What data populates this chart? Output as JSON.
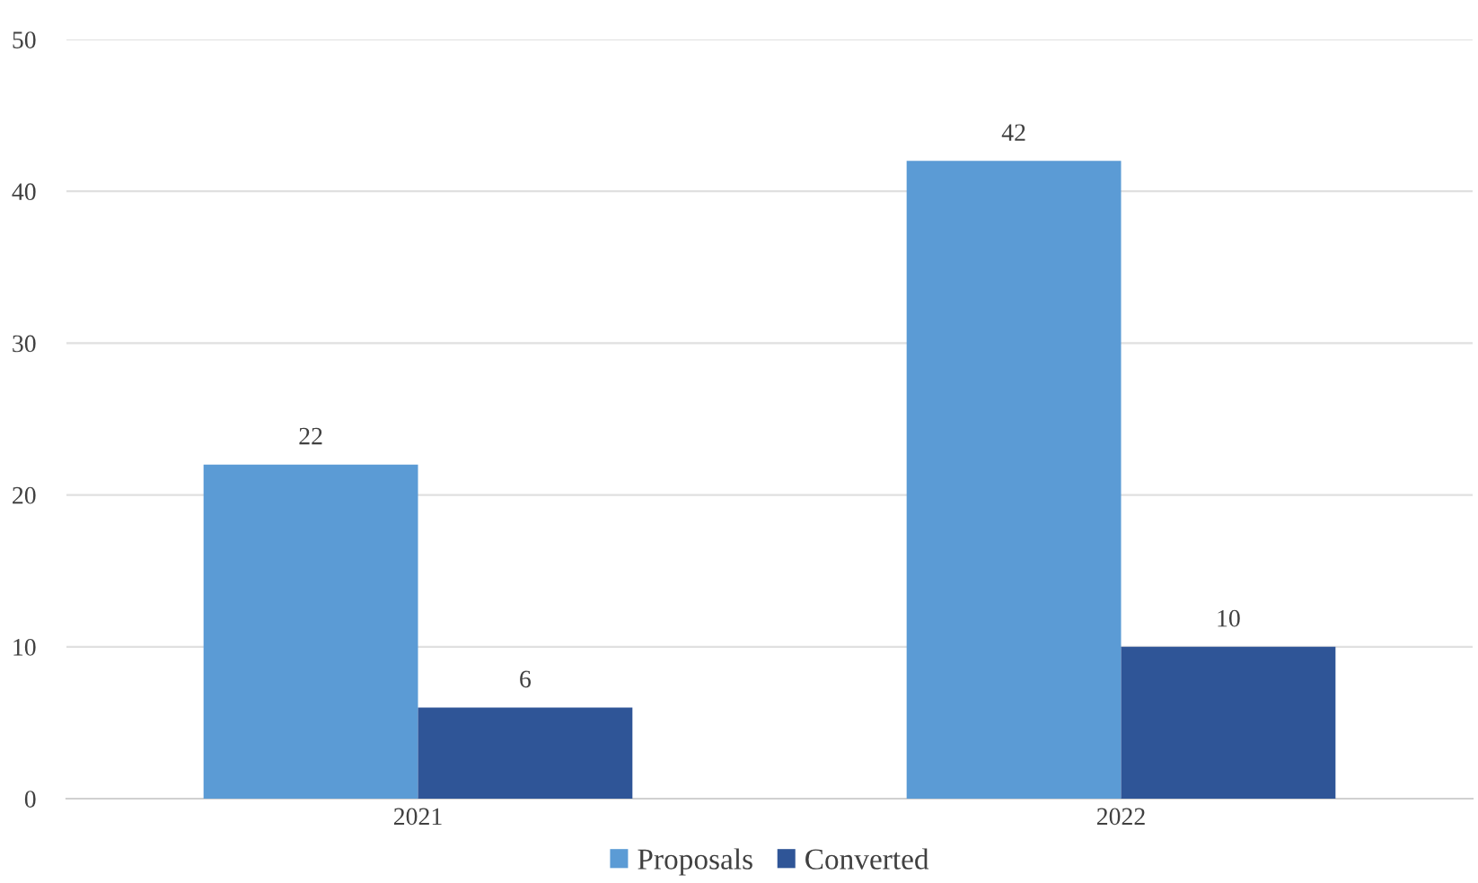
{
  "chart_data": {
    "type": "bar",
    "categories": [
      "2021",
      "2022"
    ],
    "series": [
      {
        "name": "Proposals",
        "color": "#5b9bd5",
        "values": [
          22,
          42
        ]
      },
      {
        "name": "Converted",
        "color": "#2f5597",
        "values": [
          6,
          10
        ]
      }
    ],
    "ylim": [
      0,
      50
    ],
    "yticks": [
      0,
      10,
      20,
      30,
      40,
      50
    ],
    "grid": "y",
    "legend": "bottom",
    "data_labels": true
  }
}
